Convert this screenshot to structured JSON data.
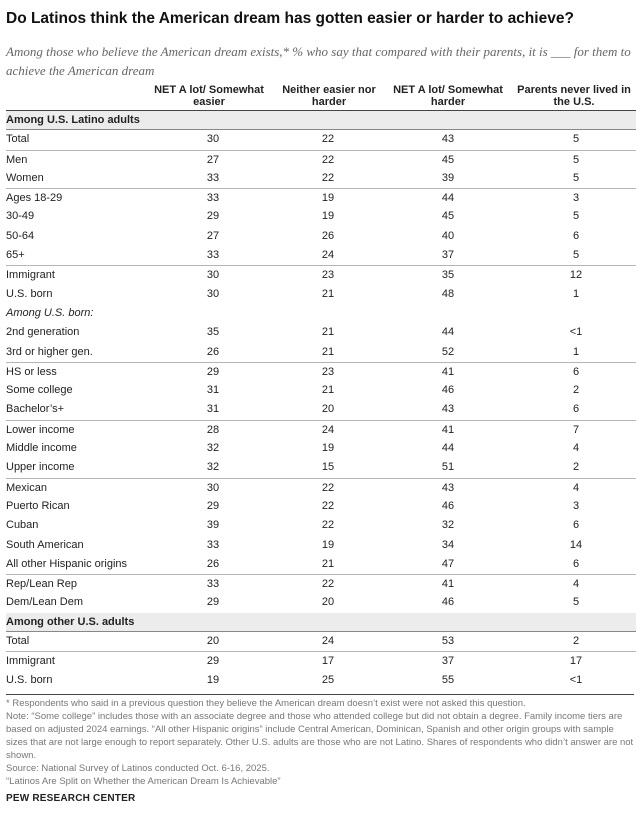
{
  "title": "Do Latinos think the American dream has gotten easier or harder to achieve?",
  "subtitle": "Among those who believe the American dream exists,* % who say that compared with their parents, it is ___ for them to achieve the American dream",
  "columns": [
    "NET A lot/ Somewhat easier",
    "Neither easier nor harder",
    "NET A lot/ Somewhat harder",
    "Parents never lived in the U.S."
  ],
  "rows": [
    {
      "type": "section",
      "label": "Among U.S. Latino adults"
    },
    {
      "label": "Total",
      "values": [
        "30",
        "22",
        "43",
        "5"
      ]
    },
    {
      "label": "Men",
      "values": [
        "27",
        "22",
        "45",
        "5"
      ],
      "groupstart": true
    },
    {
      "label": "Women",
      "values": [
        "33",
        "22",
        "39",
        "5"
      ]
    },
    {
      "label": "Ages 18-29",
      "values": [
        "33",
        "19",
        "44",
        "3"
      ],
      "groupstart": true
    },
    {
      "label": "30-49",
      "values": [
        "29",
        "19",
        "45",
        "5"
      ]
    },
    {
      "label": "50-64",
      "values": [
        "27",
        "26",
        "40",
        "6"
      ]
    },
    {
      "label": "65+",
      "values": [
        "33",
        "24",
        "37",
        "5"
      ]
    },
    {
      "label": "Immigrant",
      "values": [
        "30",
        "23",
        "35",
        "12"
      ],
      "groupstart": true
    },
    {
      "label": "U.S. born",
      "values": [
        "30",
        "21",
        "48",
        "1"
      ]
    },
    {
      "type": "sub",
      "label": "Among U.S. born:"
    },
    {
      "label": "2nd generation",
      "values": [
        "35",
        "21",
        "44",
        "<1"
      ]
    },
    {
      "label": "3rd or higher gen.",
      "values": [
        "26",
        "21",
        "52",
        "1"
      ]
    },
    {
      "label": "HS or less",
      "values": [
        "29",
        "23",
        "41",
        "6"
      ],
      "groupstart": true
    },
    {
      "label": "Some college",
      "values": [
        "31",
        "21",
        "46",
        "2"
      ]
    },
    {
      "label": "Bachelor’s+",
      "values": [
        "31",
        "20",
        "43",
        "6"
      ]
    },
    {
      "label": "Lower income",
      "values": [
        "28",
        "24",
        "41",
        "7"
      ],
      "groupstart": true
    },
    {
      "label": "Middle income",
      "values": [
        "32",
        "19",
        "44",
        "4"
      ]
    },
    {
      "label": "Upper income",
      "values": [
        "32",
        "15",
        "51",
        "2"
      ]
    },
    {
      "label": "Mexican",
      "values": [
        "30",
        "22",
        "43",
        "4"
      ],
      "groupstart": true
    },
    {
      "label": "Puerto Rican",
      "values": [
        "29",
        "22",
        "46",
        "3"
      ]
    },
    {
      "label": "Cuban",
      "values": [
        "39",
        "22",
        "32",
        "6"
      ]
    },
    {
      "label": "South American",
      "values": [
        "33",
        "19",
        "34",
        "14"
      ]
    },
    {
      "label": "All other Hispanic origins",
      "values": [
        "26",
        "21",
        "47",
        "6"
      ]
    },
    {
      "label": "Rep/Lean Rep",
      "values": [
        "33",
        "22",
        "41",
        "4"
      ],
      "groupstart": true
    },
    {
      "label": "Dem/Lean Dem",
      "values": [
        "29",
        "20",
        "46",
        "5"
      ]
    },
    {
      "type": "section",
      "label": "Among other U.S. adults"
    },
    {
      "label": "Total",
      "values": [
        "20",
        "24",
        "53",
        "2"
      ]
    },
    {
      "label": "Immigrant",
      "values": [
        "29",
        "17",
        "37",
        "17"
      ],
      "groupstart": true
    },
    {
      "label": "U.S. born",
      "values": [
        "19",
        "25",
        "55",
        "<1"
      ]
    }
  ],
  "notes": [
    "* Respondents who said in a previous question they believe the American dream doesn’t exist were not asked this question.",
    "Note: “Some college” includes those with an associate degree and those who attended college but did not obtain a degree. Family income tiers are based on adjusted 2024 earnings. “All other Hispanic origins” include Central American, Dominican, Spanish and other origin groups with sample sizes that are not large enough to report separately. Other U.S. adults are those who are not Latino. Shares of respondents who didn’t answer are not shown.",
    "Source: National Survey of Latinos conducted Oct. 6-16, 2025.",
    "“Latinos Are Split on Whether the American Dream Is Achievable”"
  ],
  "brand": "PEW RESEARCH CENTER"
}
